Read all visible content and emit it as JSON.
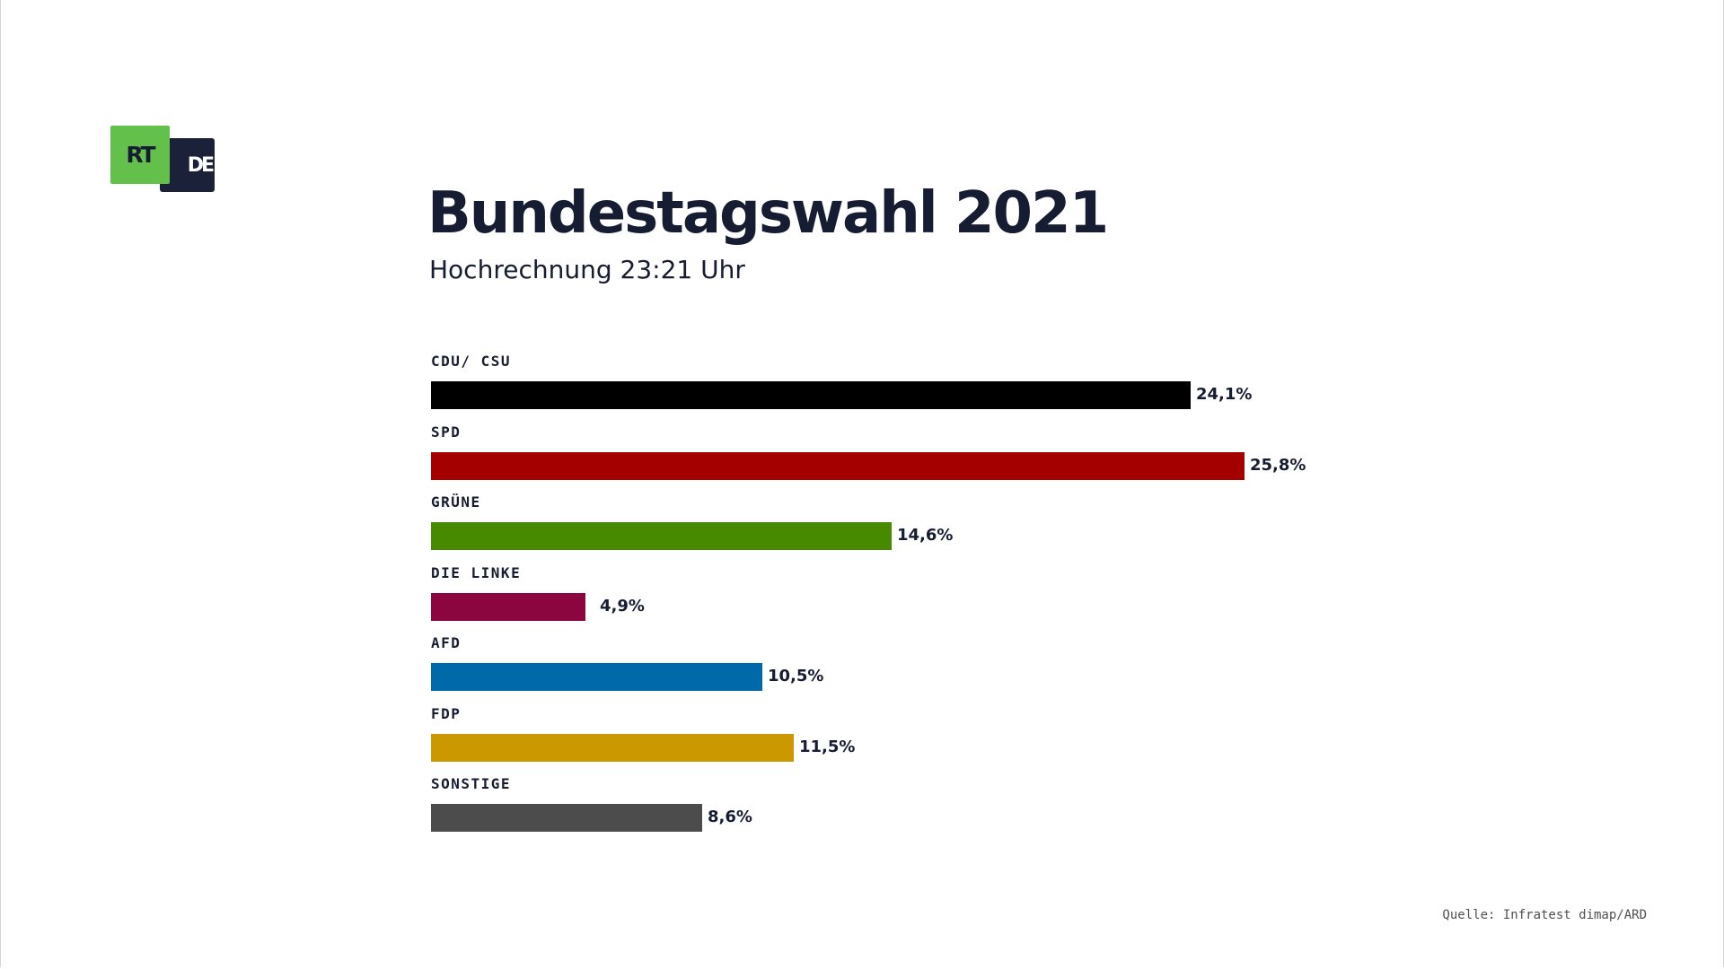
{
  "logo": {
    "rt_text": "RT",
    "de_text": "DE",
    "colors": {
      "rt_bg": "#63c04a",
      "de_bg": "#1a2138"
    }
  },
  "chart_data": {
    "type": "bar",
    "orientation": "horizontal",
    "title": "Bundestagswahl 2021",
    "subtitle": "Hochrechnung 23:21 Uhr",
    "categories": [
      "CDU/ CSU",
      "SPD",
      "GRÜNE",
      "DIE LINKE",
      "AFD",
      "FDP",
      "SONSTIGE"
    ],
    "values": [
      24.1,
      25.8,
      14.6,
      4.9,
      10.5,
      11.5,
      8.6
    ],
    "value_labels": [
      "24,1%",
      "25,8%",
      "14,6%",
      "4,9%",
      "10,5%",
      "11,5%",
      "8,6%"
    ],
    "colors": [
      "#000000",
      "#a50000",
      "#478a00",
      "#8b063e",
      "#0069aa",
      "#cb9800",
      "#4c4c4c"
    ],
    "xlim": [
      0,
      25.8
    ],
    "grid": false,
    "legend": "none",
    "source": "Quelle: Infratest dimap/ARD"
  }
}
